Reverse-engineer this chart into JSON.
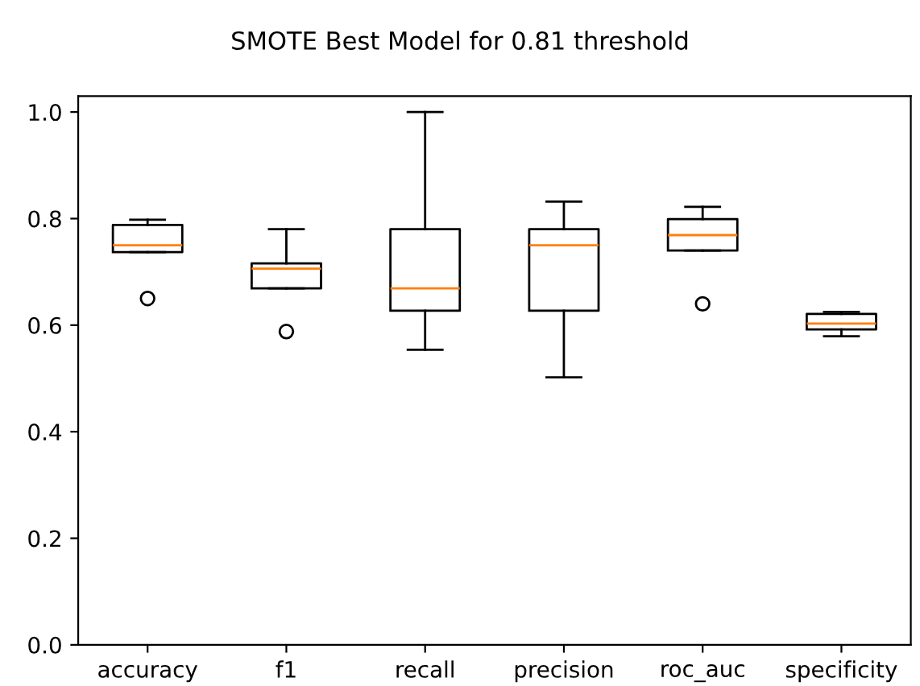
{
  "chart_data": {
    "type": "box",
    "title": "SMOTE Best Model for 0.81 threshold",
    "categories": [
      "accuracy",
      "f1",
      "recall",
      "precision",
      "roc_auc",
      "specificity"
    ],
    "boxes": [
      {
        "low": 0.737,
        "q1": 0.737,
        "median": 0.75,
        "q3": 0.788,
        "high": 0.798,
        "outliers": [
          0.65
        ]
      },
      {
        "low": 0.669,
        "q1": 0.669,
        "median": 0.706,
        "q3": 0.716,
        "high": 0.78,
        "outliers": [
          0.588
        ]
      },
      {
        "low": 0.554,
        "q1": 0.627,
        "median": 0.669,
        "q3": 0.78,
        "high": 1.0
      },
      {
        "low": 0.502,
        "q1": 0.627,
        "median": 0.75,
        "q3": 0.78,
        "high": 0.832
      },
      {
        "low": 0.74,
        "q1": 0.74,
        "median": 0.769,
        "q3": 0.799,
        "high": 0.822,
        "outliers": [
          0.64
        ]
      },
      {
        "low": 0.579,
        "q1": 0.592,
        "median": 0.603,
        "q3": 0.621,
        "high": 0.625
      }
    ],
    "ylim": [
      0.0,
      1.03
    ],
    "yticks": [
      {
        "value": 0,
        "label": "0.0"
      },
      0.2,
      0.4,
      0.6,
      0.8,
      {
        "value": 1,
        "label": "1.0"
      }
    ],
    "grid": false
  }
}
